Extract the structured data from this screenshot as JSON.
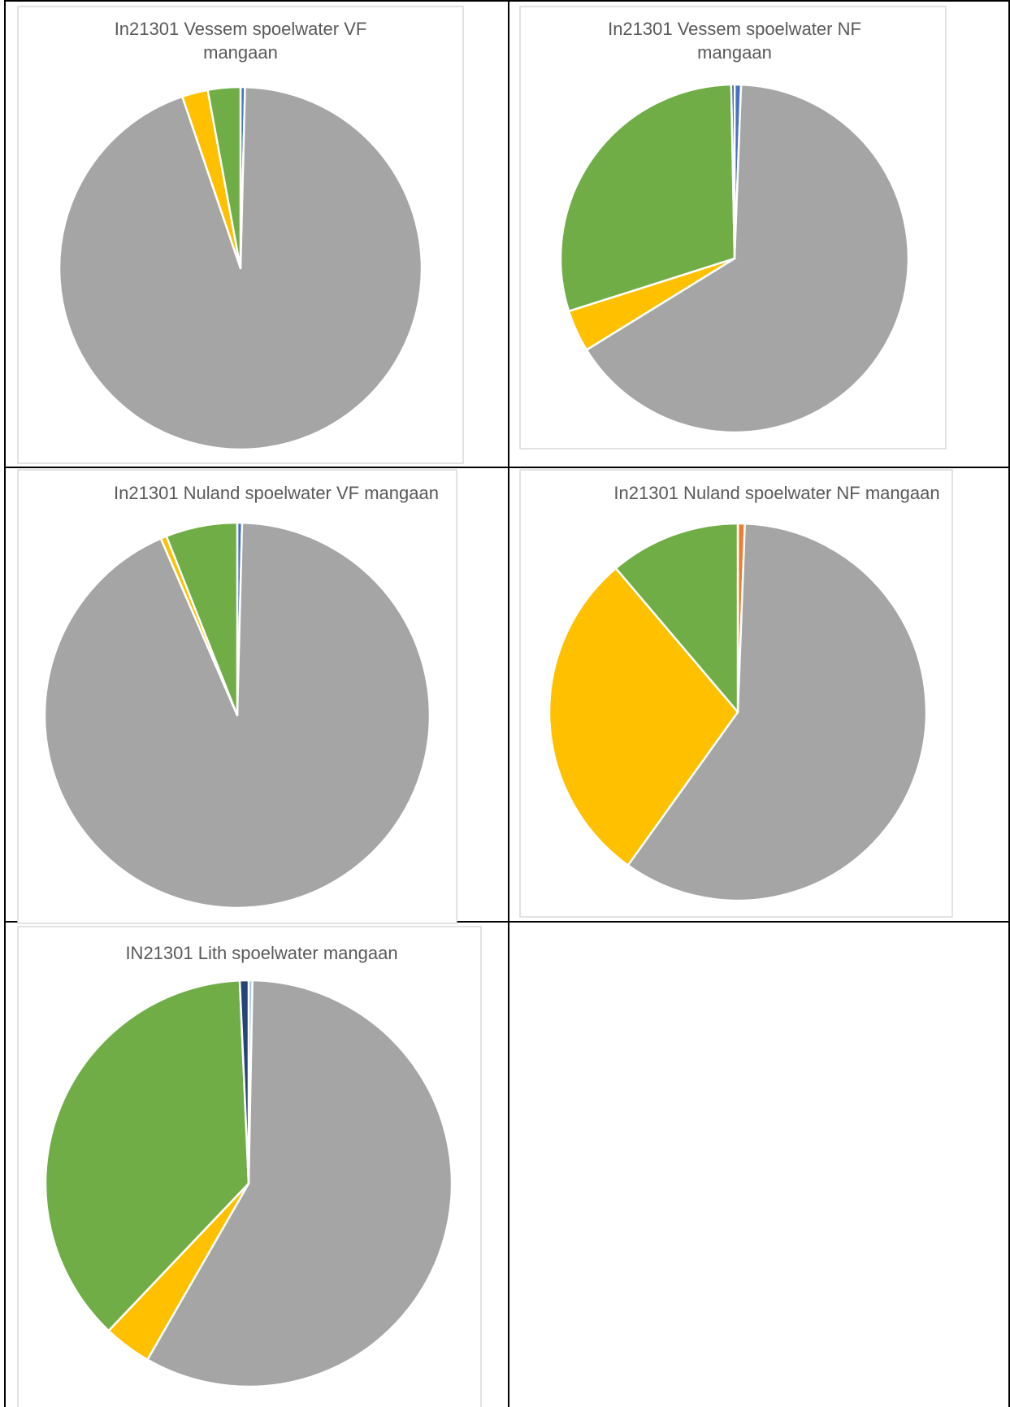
{
  "colors": {
    "grey": "#a5a5a5",
    "yellow": "#ffc000",
    "green": "#70ad47",
    "blue": "#4472c4",
    "navy": "#264478",
    "orange": "#ed7d31",
    "light_blue": "#9dc3e6"
  },
  "chart_data": [
    {
      "type": "pie",
      "title_lines": [
        "In21301 Vessem spoelwater VF",
        "mangaan"
      ],
      "slices": [
        {
          "value": 0.4,
          "color": "#4472c4"
        },
        {
          "value": 94.3,
          "color": "#a5a5a5"
        },
        {
          "value": 2.3,
          "color": "#ffc000"
        },
        {
          "value": 2.9,
          "color": "#70ad47"
        }
      ]
    },
    {
      "type": "pie",
      "title_lines": [
        "In21301 Vessem spoelwater NF",
        "mangaan"
      ],
      "slices": [
        {
          "value": 0.6,
          "color": "#4472c4"
        },
        {
          "value": 65.6,
          "color": "#a5a5a5"
        },
        {
          "value": 3.9,
          "color": "#ffc000"
        },
        {
          "value": 29.6,
          "color": "#70ad47"
        },
        {
          "value": 0.3,
          "color": "#264478"
        }
      ]
    },
    {
      "type": "pie",
      "title_lines": [
        "In21301 Nuland spoelwater VF mangaan"
      ],
      "slices": [
        {
          "value": 0.4,
          "color": "#4472c4"
        },
        {
          "value": 93.1,
          "color": "#a5a5a5"
        },
        {
          "value": 0.5,
          "color": "#ffc000"
        },
        {
          "value": 6.0,
          "color": "#70ad47"
        }
      ]
    },
    {
      "type": "pie",
      "title_lines": [
        "In21301 Nuland spoelwater NF mangaan"
      ],
      "slices": [
        {
          "value": 0.6,
          "color": "#ed7d31"
        },
        {
          "value": 59.3,
          "color": "#a5a5a5"
        },
        {
          "value": 28.9,
          "color": "#ffc000"
        },
        {
          "value": 11.2,
          "color": "#70ad47"
        }
      ]
    },
    {
      "type": "pie",
      "title_lines": [
        "IN21301 Lith spoelwater mangaan"
      ],
      "slices": [
        {
          "value": 0.3,
          "color": "#9dc3e6"
        },
        {
          "value": 58.0,
          "color": "#a5a5a5"
        },
        {
          "value": 3.8,
          "color": "#ffc000"
        },
        {
          "value": 37.2,
          "color": "#70ad47"
        },
        {
          "value": 0.7,
          "color": "#264478"
        }
      ]
    }
  ]
}
